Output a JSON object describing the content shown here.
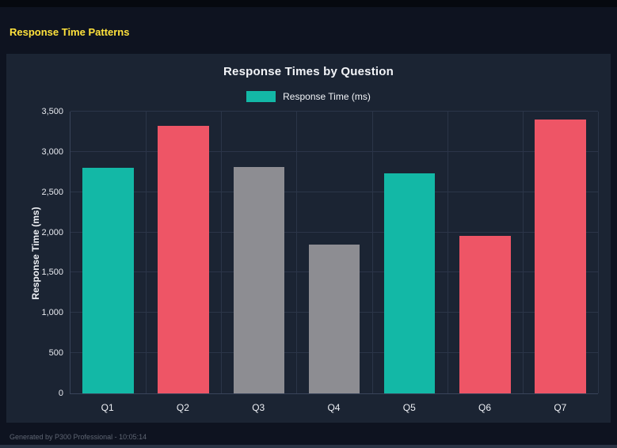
{
  "page": {
    "title": "Response Time Patterns",
    "footer": "Generated by P300 Professional - 10:05:14"
  },
  "colors": {
    "accent_yellow": "#ffe23c",
    "page_bg": "#0e1320",
    "panel_bg": "#1b2433",
    "grid": "#2b3548",
    "teal": "#13b8a6",
    "red": "#ee5566",
    "gray": "#8d8d92"
  },
  "chart_data": {
    "type": "bar",
    "title": "Response Times by Question",
    "legend": [
      {
        "label": "Response Time (ms)",
        "color": "#13b8a6"
      }
    ],
    "legend_position": "top",
    "categories": [
      "Q1",
      "Q2",
      "Q3",
      "Q4",
      "Q5",
      "Q6",
      "Q7"
    ],
    "values": [
      2800,
      3320,
      2810,
      1850,
      2730,
      1960,
      3400
    ],
    "bar_colors": [
      "#13b8a6",
      "#ee5566",
      "#8d8d92",
      "#8d8d92",
      "#13b8a6",
      "#ee5566",
      "#ee5566"
    ],
    "xlabel": "",
    "ylabel": "Response Time (ms)",
    "ylim": [
      0,
      3500
    ],
    "yticks": [
      0,
      500,
      1000,
      1500,
      2000,
      2500,
      3000,
      3500
    ],
    "ytick_labels": [
      "0",
      "500",
      "1,000",
      "1,500",
      "2,000",
      "2,500",
      "3,000",
      "3,500"
    ],
    "grid": true
  }
}
